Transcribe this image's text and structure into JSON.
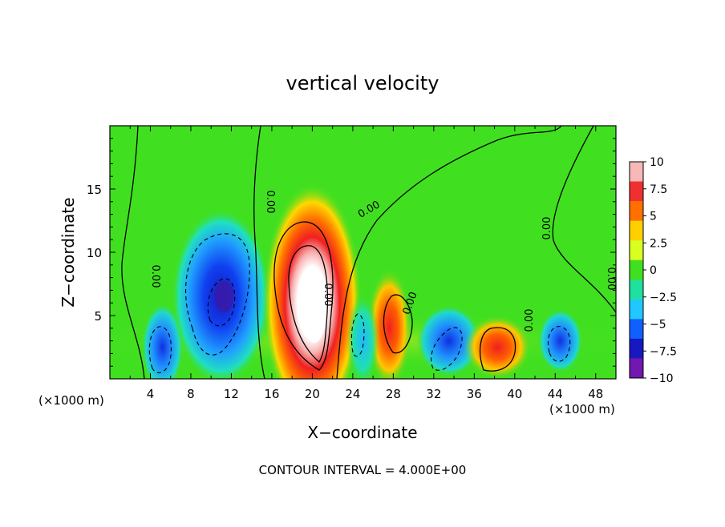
{
  "chart_data": {
    "type": "heatmap",
    "title": "vertical velocity",
    "xlabel": "X−coordinate",
    "ylabel": "Z−coordinate",
    "x_unit_left": "(×1000 m)",
    "x_unit_right": "(×1000 m)",
    "footer": "CONTOUR INTERVAL = 4.000E+00",
    "xlim": [
      0,
      50
    ],
    "ylim": [
      0,
      20
    ],
    "x_ticks": [
      "4",
      "8",
      "12",
      "16",
      "20",
      "24",
      "28",
      "32",
      "36",
      "40",
      "44",
      "48"
    ],
    "y_ticks": [
      "5",
      "10",
      "15"
    ],
    "colorbar": {
      "range": [
        -10,
        10
      ],
      "tick_labels": [
        "10",
        "7.5",
        "5",
        "2.5",
        "0",
        "−2.5",
        "−5",
        "−7.5",
        "−10"
      ],
      "colors": [
        "#f8b8b8",
        "#f03030",
        "#ff7000",
        "#ffd000",
        "#d8ff20",
        "#40e020",
        "#20e0a0",
        "#20c8ff",
        "#1060ff",
        "#1818c0",
        "#7018b0"
      ]
    },
    "contour_labels": [
      "0.00",
      "0.00",
      "0.00",
      "0.00",
      "0.00",
      "0.00",
      "0.00",
      "0.00"
    ],
    "features": [
      {
        "x": 5.2,
        "z": 2.5,
        "w": -7
      },
      {
        "x": 11,
        "z": 6.5,
        "w": -9.5
      },
      {
        "x": 20,
        "z": 6,
        "w": 14
      },
      {
        "x": 27.6,
        "z": 4,
        "w": 6
      },
      {
        "x": 33.5,
        "z": 3,
        "w": -5.5
      },
      {
        "x": 38.3,
        "z": 2.5,
        "w": 6.5
      },
      {
        "x": 44.5,
        "z": 3,
        "w": -6
      },
      {
        "x": 25,
        "z": 3,
        "w": -3
      }
    ]
  }
}
